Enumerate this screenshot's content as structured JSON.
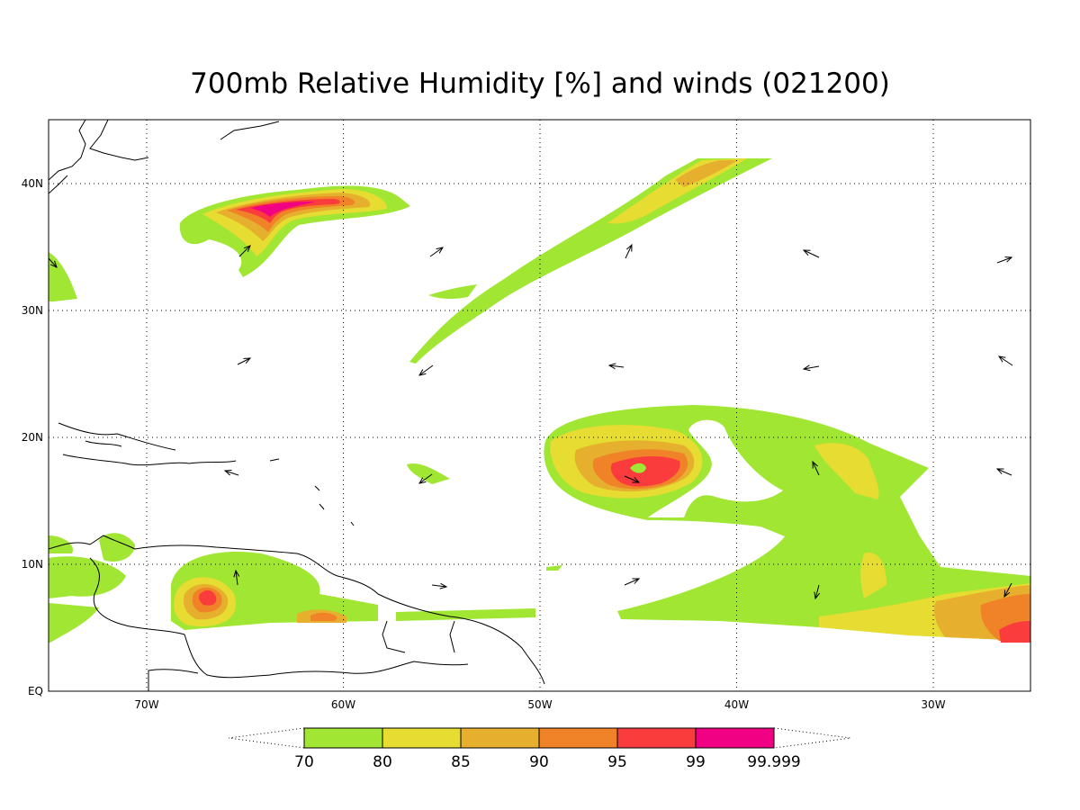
{
  "title": "700mb Relative Humidity [%] and winds (021200)",
  "map": {
    "longitude_labels": [
      "70W",
      "60W",
      "50W",
      "40W",
      "30W"
    ],
    "latitude_labels": [
      "EQ",
      "10N",
      "20N",
      "30N",
      "40N"
    ]
  },
  "colorbar": {
    "levels": [
      70,
      80,
      85,
      90,
      95,
      99,
      99.999
    ],
    "colors": [
      "#a0e632",
      "#e6dc32",
      "#e6af2d",
      "#f08228",
      "#fa3c3c",
      "#f00082"
    ]
  }
}
